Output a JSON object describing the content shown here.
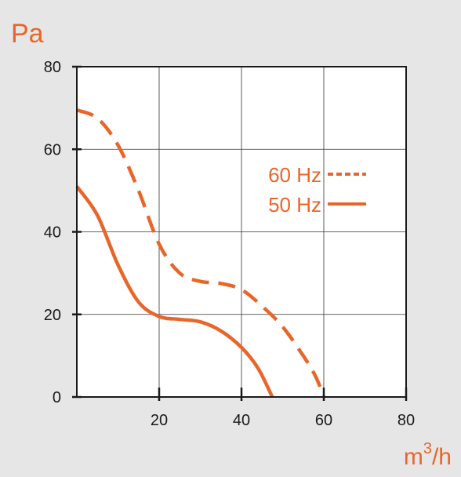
{
  "chart_data": {
    "type": "line",
    "ylabel": "Pa",
    "xlabel_base": "m",
    "xlabel_sup": "3",
    "xlabel_tail": "/h",
    "xlim": [
      0,
      80
    ],
    "ylim": [
      0,
      80
    ],
    "x_ticks": [
      20,
      40,
      60,
      80
    ],
    "y_ticks": [
      0,
      20,
      40,
      60,
      80
    ],
    "grid": true,
    "legend_position": "right-middle",
    "series": [
      {
        "name": "60 Hz",
        "style": "dashed",
        "color": "#e8662a",
        "points": [
          [
            0,
            69.5
          ],
          [
            5,
            67.5
          ],
          [
            10,
            61
          ],
          [
            15,
            50
          ],
          [
            20,
            37
          ],
          [
            25,
            30
          ],
          [
            30,
            28
          ],
          [
            35,
            27.5
          ],
          [
            40,
            26
          ],
          [
            45,
            22
          ],
          [
            50,
            17
          ],
          [
            55,
            10
          ],
          [
            58,
            5
          ],
          [
            60,
            0
          ]
        ]
      },
      {
        "name": "50 Hz",
        "style": "solid",
        "color": "#e8662a",
        "points": [
          [
            0,
            51
          ],
          [
            5,
            44
          ],
          [
            10,
            32
          ],
          [
            15,
            23
          ],
          [
            20,
            19.5
          ],
          [
            25,
            18.8
          ],
          [
            30,
            18.2
          ],
          [
            35,
            16
          ],
          [
            40,
            12
          ],
          [
            44,
            7
          ],
          [
            47.5,
            0
          ]
        ]
      }
    ]
  },
  "colors": {
    "accent": "#e8662a",
    "background": "#e6e6e6",
    "plot_background": "#ffffff",
    "axis": "#1a1a1a"
  }
}
